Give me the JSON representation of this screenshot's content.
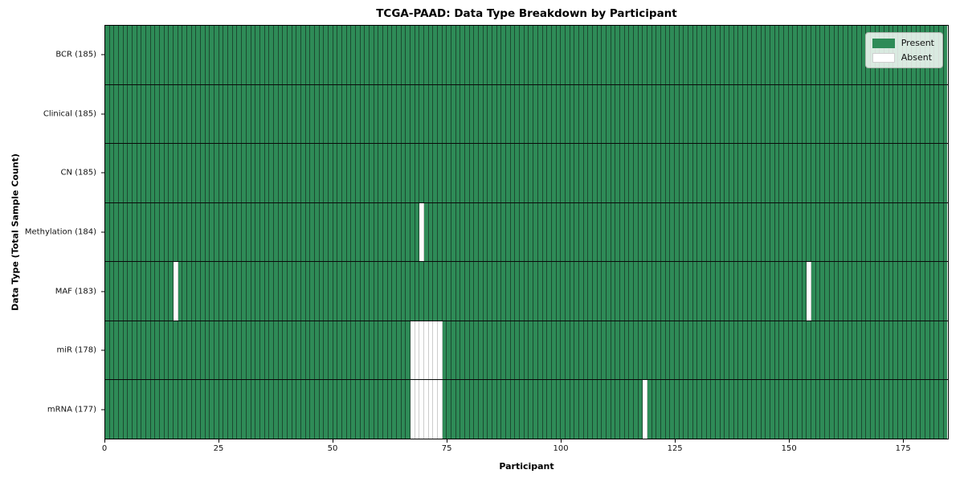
{
  "title": "TCGA-PAAD: Data Type Breakdown by Participant",
  "xlabel": "Participant",
  "ylabel": "Data Type (Total Sample Count)",
  "legend": [
    {
      "label": "Present",
      "color": "#2e8b57"
    },
    {
      "label": "Absent",
      "color": "#ffffff"
    }
  ],
  "colors": {
    "present": "#2e8b57",
    "present_edge": "#1d4a31",
    "absent": "#ffffff",
    "absent_edge": "#cccccc",
    "row_border": "#0a0a0a",
    "spine": "#000000"
  },
  "chart_data": {
    "type": "heatmap",
    "title": "TCGA-PAAD: Data Type Breakdown by Participant",
    "xlabel": "Participant",
    "ylabel": "Data Type (Total Sample Count)",
    "n_participants": 185,
    "xlim": [
      0,
      185
    ],
    "x_ticks": [
      0,
      25,
      50,
      75,
      100,
      125,
      150,
      175
    ],
    "legend_position": "upper right",
    "grid": false,
    "rows": [
      {
        "label": "BCR (185)",
        "data_type": "BCR",
        "present_count": 185,
        "absent_participants": []
      },
      {
        "label": "Clinical (185)",
        "data_type": "Clinical",
        "present_count": 185,
        "absent_participants": []
      },
      {
        "label": "CN (185)",
        "data_type": "CN",
        "present_count": 185,
        "absent_participants": []
      },
      {
        "label": "Methylation (184)",
        "data_type": "Methylation",
        "present_count": 184,
        "absent_participants": [
          69
        ]
      },
      {
        "label": "MAF (183)",
        "data_type": "MAF",
        "present_count": 183,
        "absent_participants": [
          15,
          154
        ]
      },
      {
        "label": "miR (178)",
        "data_type": "miR",
        "present_count": 178,
        "absent_participants": [
          67,
          68,
          69,
          70,
          71,
          72,
          73
        ]
      },
      {
        "label": "mRNA (177)",
        "data_type": "mRNA",
        "present_count": 177,
        "absent_participants": [
          67,
          68,
          69,
          70,
          71,
          72,
          73,
          118
        ]
      }
    ]
  }
}
